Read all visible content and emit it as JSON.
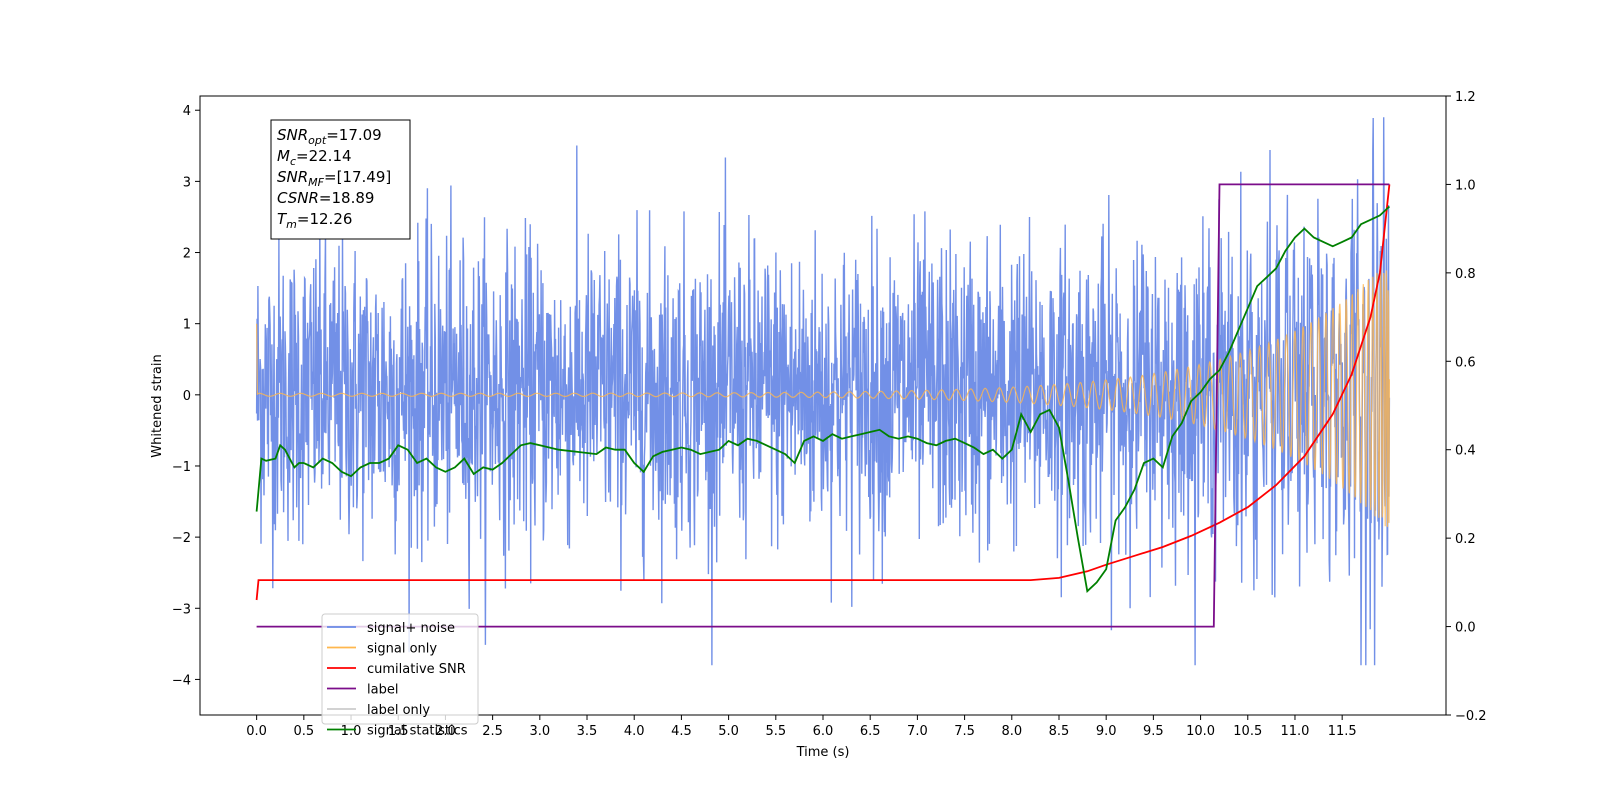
{
  "chart_data": {
    "type": "line",
    "title": "",
    "xlabel": "Time (s)",
    "ylabel": "Whitened strain",
    "xlim": [
      -0.6,
      12.6
    ],
    "ylim": [
      -4.5,
      4.2
    ],
    "y2lim": [
      -0.2,
      1.2
    ],
    "x_ticks": [
      0.0,
      0.5,
      1.0,
      1.5,
      2.0,
      2.5,
      3.0,
      3.5,
      4.0,
      4.5,
      5.0,
      5.5,
      6.0,
      6.5,
      7.0,
      7.5,
      8.0,
      8.5,
      9.0,
      9.5,
      10.0,
      10.5,
      11.0,
      11.5
    ],
    "x_tick_labels": [
      "0.0",
      "0.5",
      "1.0",
      "1.5",
      "2.0",
      "2.5",
      "3.0",
      "3.5",
      "4.0",
      "4.5",
      "5.0",
      "5.5",
      "6.0",
      "6.5",
      "7.0",
      "7.5",
      "8.0",
      "8.5",
      "9.0",
      "9.5",
      "10.0",
      "10.5",
      "11.0",
      "11.5"
    ],
    "y_ticks": [
      -4,
      -3,
      -2,
      -1,
      0,
      1,
      2,
      3,
      4
    ],
    "y_tick_labels": [
      "−4",
      "−3",
      "−2",
      "−1",
      "0",
      "1",
      "2",
      "3",
      "4"
    ],
    "y2_ticks": [
      -0.2,
      0.0,
      0.2,
      0.4,
      0.6,
      0.8,
      1.0,
      1.2
    ],
    "y2_tick_labels": [
      "−0.2",
      "0.0",
      "0.2",
      "0.4",
      "0.6",
      "0.8",
      "1.0",
      "1.2"
    ],
    "grid": false,
    "legend_position": "bottom-left",
    "noise": {
      "t_start": 0.0,
      "t_end": 12.0,
      "samples": 2600,
      "std": 1.05,
      "offset": 0.05
    },
    "signal": {
      "t_end": 12.0,
      "start_amp": 0.02,
      "end_amp": 1.9,
      "tau": 1.3
    },
    "series": [
      {
        "name": "signal+ noise",
        "color": "#6a8ae6",
        "axis": "left"
      },
      {
        "name": "signal only",
        "color": "#ffb74d",
        "axis": "left"
      },
      {
        "name": "cumilative SNR",
        "color": "#ff0000",
        "axis": "right",
        "x": [
          0.0,
          0.02,
          8.2,
          8.5,
          8.8,
          9.0,
          9.3,
          9.6,
          9.9,
          10.2,
          10.5,
          10.8,
          11.1,
          11.4,
          11.6,
          11.8,
          11.9,
          12.0
        ],
        "values": [
          0.06,
          0.105,
          0.105,
          0.11,
          0.125,
          0.14,
          0.16,
          0.18,
          0.205,
          0.235,
          0.27,
          0.32,
          0.385,
          0.48,
          0.57,
          0.7,
          0.8,
          1.0
        ]
      },
      {
        "name": "label",
        "color": "#7b0d8a",
        "axis": "right",
        "x": [
          0.0,
          10.14,
          10.2,
          12.0
        ],
        "values": [
          0.0,
          0.0,
          1.0,
          1.0
        ]
      },
      {
        "name": "label only",
        "color": "#cccccc",
        "axis": "right",
        "hidden": true
      },
      {
        "name": "signal statistics",
        "color": "#008000",
        "axis": "right",
        "x": [
          0.0,
          0.05,
          0.1,
          0.2,
          0.25,
          0.3,
          0.4,
          0.45,
          0.5,
          0.6,
          0.7,
          0.8,
          0.9,
          1.0,
          1.1,
          1.2,
          1.3,
          1.4,
          1.5,
          1.6,
          1.7,
          1.8,
          1.9,
          2.0,
          2.1,
          2.2,
          2.3,
          2.4,
          2.5,
          2.6,
          2.7,
          2.8,
          2.9,
          3.0,
          3.2,
          3.4,
          3.6,
          3.7,
          3.8,
          3.9,
          4.0,
          4.1,
          4.2,
          4.3,
          4.4,
          4.5,
          4.6,
          4.7,
          4.8,
          4.9,
          5.0,
          5.1,
          5.2,
          5.3,
          5.4,
          5.5,
          5.6,
          5.7,
          5.8,
          5.9,
          6.0,
          6.1,
          6.2,
          6.3,
          6.4,
          6.5,
          6.6,
          6.7,
          6.8,
          6.9,
          7.0,
          7.1,
          7.2,
          7.3,
          7.4,
          7.5,
          7.6,
          7.7,
          7.8,
          7.9,
          8.0,
          8.1,
          8.2,
          8.3,
          8.4,
          8.5,
          8.6,
          8.7,
          8.8,
          8.9,
          9.0,
          9.1,
          9.2,
          9.3,
          9.4,
          9.5,
          9.6,
          9.7,
          9.8,
          9.9,
          10.0,
          10.1,
          10.2,
          10.3,
          10.4,
          10.5,
          10.6,
          10.7,
          10.8,
          10.9,
          11.0,
          11.1,
          11.2,
          11.3,
          11.4,
          11.5,
          11.6,
          11.7,
          11.8,
          11.9,
          12.0
        ],
        "values": [
          0.26,
          0.38,
          0.375,
          0.38,
          0.41,
          0.4,
          0.36,
          0.37,
          0.37,
          0.36,
          0.38,
          0.37,
          0.35,
          0.34,
          0.36,
          0.37,
          0.37,
          0.38,
          0.41,
          0.4,
          0.37,
          0.38,
          0.36,
          0.35,
          0.36,
          0.38,
          0.345,
          0.36,
          0.355,
          0.37,
          0.39,
          0.41,
          0.415,
          0.41,
          0.4,
          0.395,
          0.39,
          0.405,
          0.4,
          0.4,
          0.37,
          0.35,
          0.385,
          0.395,
          0.4,
          0.405,
          0.4,
          0.39,
          0.395,
          0.4,
          0.42,
          0.41,
          0.425,
          0.42,
          0.41,
          0.4,
          0.39,
          0.37,
          0.42,
          0.43,
          0.42,
          0.435,
          0.425,
          0.43,
          0.435,
          0.44,
          0.445,
          0.43,
          0.425,
          0.43,
          0.425,
          0.415,
          0.41,
          0.42,
          0.425,
          0.415,
          0.405,
          0.39,
          0.4,
          0.38,
          0.4,
          0.48,
          0.44,
          0.48,
          0.49,
          0.45,
          0.33,
          0.2,
          0.08,
          0.1,
          0.13,
          0.24,
          0.27,
          0.31,
          0.37,
          0.38,
          0.36,
          0.43,
          0.46,
          0.51,
          0.53,
          0.56,
          0.58,
          0.62,
          0.67,
          0.72,
          0.77,
          0.79,
          0.81,
          0.85,
          0.88,
          0.9,
          0.88,
          0.87,
          0.86,
          0.87,
          0.88,
          0.91,
          0.92,
          0.93,
          0.95
        ]
      }
    ]
  },
  "annotation": {
    "lines": [
      {
        "base": "SNR",
        "sub": "opt",
        "value": "=17.09"
      },
      {
        "base": "M",
        "sub": "c",
        "value": "=22.14"
      },
      {
        "base": "SNR",
        "sub": "MF",
        "value": "=[17.49]"
      },
      {
        "base": "CSNR",
        "sub": "",
        "value": "=18.89"
      },
      {
        "base": "T",
        "sub": "m",
        "value": "=12.26"
      }
    ]
  },
  "legend": {
    "items": [
      {
        "label": "signal+ noise",
        "color": "#6a8ae6"
      },
      {
        "label": "signal only",
        "color": "#ffb74d"
      },
      {
        "label": "cumilative SNR",
        "color": "#ff0000"
      },
      {
        "label": "label",
        "color": "#7b0d8a"
      },
      {
        "label": "label only",
        "color": "#cccccc"
      },
      {
        "label": "signal statistics",
        "color": "#008000"
      }
    ]
  }
}
